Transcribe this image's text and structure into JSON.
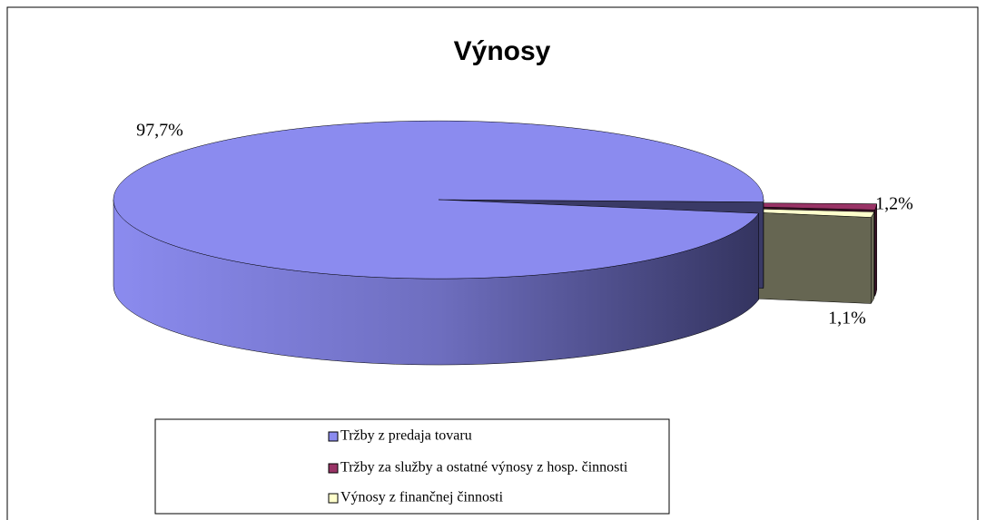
{
  "chart_data": {
    "type": "pie",
    "title": "Výnosy",
    "categories": [
      "Tržby z predaja tovaru",
      "Tržby za služby a ostatné výnosy z hosp. činnosti",
      "Výnosy z finančnej činnosti"
    ],
    "values": [
      97.7,
      1.2,
      1.1
    ],
    "value_labels": [
      "97,7%",
      "1,2%",
      "1,1%"
    ],
    "colors": [
      "#8b8bef",
      "#993366",
      "#ffffcc"
    ],
    "legend": "bottom"
  }
}
